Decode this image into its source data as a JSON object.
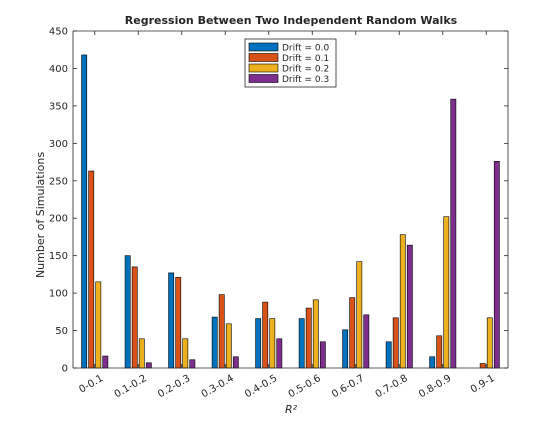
{
  "chart_data": {
    "type": "bar",
    "title": "Regression Between Two Independent Random Walks",
    "xlabel": "R²",
    "ylabel": "Number of Simulations",
    "ylim": [
      0,
      450
    ],
    "yticks": [
      0,
      50,
      100,
      150,
      200,
      250,
      300,
      350,
      400,
      450
    ],
    "categories": [
      "0-0.1",
      "0.1-0.2",
      "0.2-0.3",
      "0.3-0.4",
      "0.4-0.5",
      "0.5-0.6",
      "0.6-0.7",
      "0.7-0.8",
      "0.8-0.9",
      "0.9-1"
    ],
    "series": [
      {
        "name": "Drift = 0.0",
        "color": "#0072BD",
        "values": [
          418,
          150,
          127,
          68,
          66,
          66,
          51,
          35,
          15,
          0
        ]
      },
      {
        "name": "Drift = 0.1",
        "color": "#D95319",
        "values": [
          263,
          135,
          121,
          98,
          88,
          80,
          94,
          67,
          43,
          6
        ]
      },
      {
        "name": "Drift = 0.2",
        "color": "#EDB120",
        "values": [
          115,
          39,
          39,
          59,
          66,
          91,
          142,
          178,
          202,
          67
        ]
      },
      {
        "name": "Drift = 0.3",
        "color": "#7E2F8E",
        "values": [
          16,
          7,
          11,
          15,
          39,
          35,
          71,
          164,
          359,
          276
        ]
      }
    ],
    "legend_position": "top-center",
    "grid": false
  }
}
